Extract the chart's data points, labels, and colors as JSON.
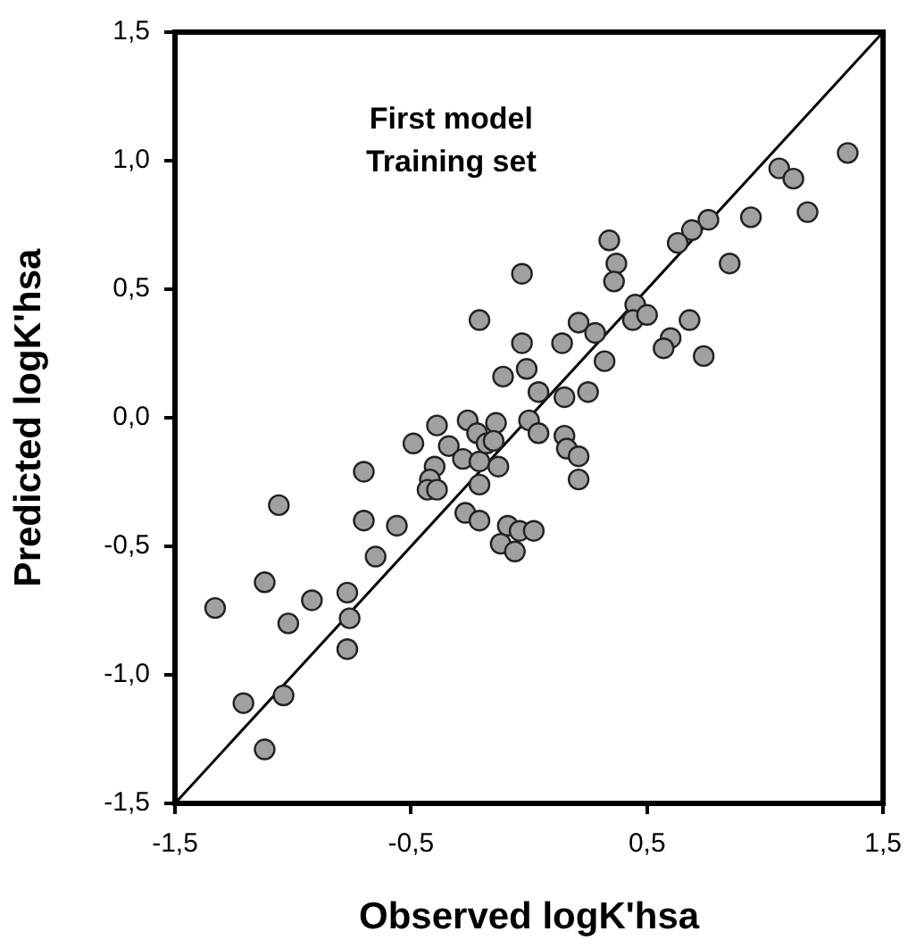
{
  "chart_data": {
    "type": "scatter",
    "xlabel": "Observed logK'hsa",
    "ylabel": "Predicted logK'hsa",
    "annotations": [
      "First model",
      "Training set"
    ],
    "xlim": [
      -1.5,
      1.5
    ],
    "ylim": [
      -1.5,
      1.5
    ],
    "xticks": [
      {
        "value": -1.5,
        "label": "-1,5"
      },
      {
        "value": -0.5,
        "label": "-0,5"
      },
      {
        "value": 0.5,
        "label": "0,5"
      },
      {
        "value": 1.5,
        "label": "1,5"
      }
    ],
    "yticks": [
      {
        "value": -1.5,
        "label": "-1,5"
      },
      {
        "value": -1,
        "label": "-1,0"
      },
      {
        "value": -0.5,
        "label": "-0,5"
      },
      {
        "value": 0,
        "label": "0,0"
      },
      {
        "value": 0.5,
        "label": "0,5"
      },
      {
        "value": 1,
        "label": "1,0"
      },
      {
        "value": 1.5,
        "label": "1,5"
      }
    ],
    "grid": false,
    "legend": false,
    "marker": "circle",
    "series": [
      {
        "type": "scatter",
        "color": "#a0a0a0",
        "x": [
          -1.33,
          -1.06,
          -1.12,
          -1.02,
          -0.92,
          -1.21,
          -1.04,
          -1.12,
          -0.7,
          -0.7,
          -0.65,
          -0.56,
          -0.77,
          -0.76,
          -0.77,
          -0.49,
          -0.39,
          -0.4,
          -0.42,
          -0.43,
          -0.39,
          -0.34,
          -0.28,
          -0.26,
          -0.22,
          -0.21,
          -0.21,
          -0.27,
          -0.21,
          -0.18,
          -0.14,
          -0.13,
          -0.15,
          -0.12,
          -0.21,
          -0.11,
          1.35,
          1.06,
          1.12,
          1.18,
          0.94,
          0.76,
          0.69,
          0.63,
          0.85,
          0.34,
          0.37,
          0.36,
          -0.03,
          0.45,
          0.44,
          0.5,
          0.68,
          0.21,
          0.28,
          -0.03,
          0.14,
          0.6,
          0.57,
          0.74,
          -0.01,
          0.32,
          0.04,
          0.15,
          0.25,
          0.0,
          0.04,
          0.15,
          0.16,
          0.21,
          0.21,
          -0.09,
          -0.04,
          0.02,
          -0.06
        ],
        "values": [
          -0.74,
          -0.34,
          -0.64,
          -0.8,
          -0.71,
          -1.11,
          -1.08,
          -1.29,
          -0.21,
          -0.4,
          -0.54,
          -0.42,
          -0.68,
          -0.78,
          -0.9,
          -0.1,
          -0.03,
          -0.19,
          -0.24,
          -0.28,
          -0.28,
          -0.11,
          -0.16,
          -0.01,
          -0.06,
          -0.17,
          -0.26,
          -0.37,
          -0.4,
          -0.1,
          -0.02,
          -0.19,
          -0.09,
          -0.49,
          0.38,
          0.16,
          1.03,
          0.97,
          0.93,
          0.8,
          0.78,
          0.77,
          0.73,
          0.68,
          0.6,
          0.69,
          0.6,
          0.53,
          0.56,
          0.44,
          0.38,
          0.4,
          0.38,
          0.37,
          0.33,
          0.29,
          0.29,
          0.31,
          0.27,
          0.24,
          0.19,
          0.22,
          0.1,
          0.08,
          0.1,
          -0.01,
          -0.06,
          -0.07,
          -0.12,
          -0.15,
          -0.24,
          -0.42,
          -0.44,
          -0.44,
          -0.52
        ]
      },
      {
        "type": "line",
        "color": "#000000",
        "marker": "none",
        "x": [
          -1.5,
          1.5
        ],
        "values": [
          -1.5,
          1.5
        ]
      }
    ]
  }
}
